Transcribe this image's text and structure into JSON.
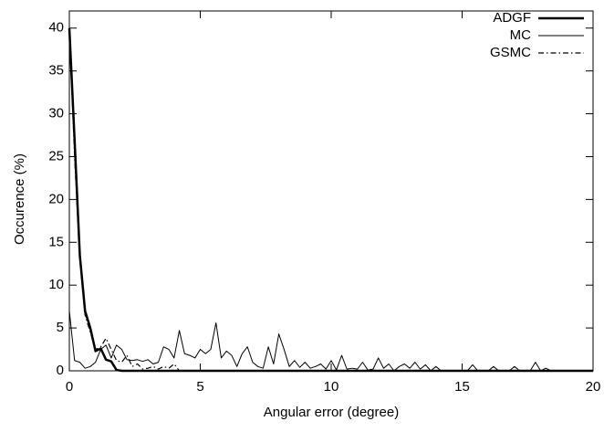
{
  "chart_data": {
    "type": "line",
    "xlabel": "Angular error (degree)",
    "ylabel": "Occurence (%)",
    "xlim": [
      0,
      20
    ],
    "ylim": [
      0,
      42
    ],
    "xticks": [
      0,
      5,
      10,
      15,
      20
    ],
    "yticks": [
      0,
      5,
      10,
      15,
      20,
      25,
      30,
      35,
      40
    ],
    "legend": "upper right",
    "series": [
      {
        "name": "ADGF",
        "color": "#000000",
        "width": 2.5,
        "style": "solid",
        "x": [
          0,
          0.2,
          0.4,
          0.6,
          0.8,
          1.0,
          1.2,
          1.4,
          1.6,
          1.8,
          2.0,
          20
        ],
        "values": [
          40,
          27,
          13.5,
          7,
          5,
          2.3,
          2.6,
          1.3,
          1.1,
          0.1,
          0,
          0
        ]
      },
      {
        "name": "MC",
        "color": "#000000",
        "width": 1,
        "style": "solid",
        "x": [
          0,
          0.2,
          0.4,
          0.6,
          0.8,
          1.0,
          1.2,
          1.4,
          1.6,
          1.8,
          2.0,
          2.2,
          2.4,
          2.6,
          2.8,
          3.0,
          3.2,
          3.4,
          3.6,
          3.8,
          4.0,
          4.2,
          4.4,
          4.6,
          4.8,
          5.0,
          5.2,
          5.4,
          5.6,
          5.8,
          6.0,
          6.2,
          6.4,
          6.6,
          6.8,
          7.0,
          7.2,
          7.4,
          7.6,
          7.8,
          8.0,
          8.2,
          8.4,
          8.6,
          8.8,
          9.0,
          9.2,
          9.4,
          9.6,
          9.8,
          10.0,
          10.2,
          10.4,
          10.6,
          10.8,
          11.0,
          11.2,
          11.4,
          11.6,
          11.8,
          12.0,
          12.2,
          12.4,
          12.6,
          12.8,
          13.0,
          13.2,
          13.4,
          13.6,
          13.8,
          14.0,
          14.2,
          15.2,
          15.4,
          15.6,
          16.0,
          16.2,
          16.4,
          16.8,
          17.0,
          17.2,
          17.6,
          17.8,
          18.0,
          18.2,
          18.4,
          20
        ],
        "values": [
          7,
          1.2,
          1,
          0.3,
          0.5,
          1,
          2.5,
          3,
          1.5,
          3,
          2.5,
          1.3,
          1.2,
          1.3,
          1.1,
          1.3,
          0.8,
          1,
          2.8,
          2.5,
          1.5,
          4.7,
          2,
          1.8,
          1.5,
          2.5,
          2,
          2.5,
          5.6,
          1.5,
          2.3,
          1.8,
          0.5,
          2,
          2.8,
          1,
          0.5,
          0.3,
          2.8,
          0.8,
          4.3,
          2.5,
          0.5,
          1.2,
          0.4,
          1,
          0.3,
          0.5,
          0.8,
          0.2,
          1.2,
          0.1,
          1.8,
          0.2,
          0.3,
          0.2,
          1,
          0.1,
          0.2,
          1.5,
          0.3,
          0.8,
          0,
          0.5,
          0.8,
          0.3,
          1,
          0.2,
          0.7,
          0,
          0.5,
          0,
          0,
          0.7,
          0,
          0,
          0.5,
          0,
          0,
          0.5,
          0,
          0,
          1,
          0,
          0.3,
          0,
          0
        ]
      },
      {
        "name": "GSMC",
        "color": "#000000",
        "width": 1.2,
        "style": "dashdot",
        "x": [
          0,
          0.2,
          0.4,
          0.6,
          0.8,
          1.0,
          1.2,
          1.4,
          1.6,
          1.8,
          2.0,
          2.2,
          2.4,
          2.6,
          2.8,
          3.0,
          3.2,
          3.4,
          3.6,
          3.8,
          4.0,
          4.2,
          20
        ],
        "values": [
          40,
          25,
          13,
          6.5,
          4.5,
          2.5,
          2.8,
          3.8,
          2.5,
          1.2,
          1.0,
          1.8,
          0.5,
          0.8,
          0.2,
          0.3,
          0.5,
          0.2,
          0.5,
          0.3,
          0.8,
          0,
          0
        ]
      }
    ]
  }
}
